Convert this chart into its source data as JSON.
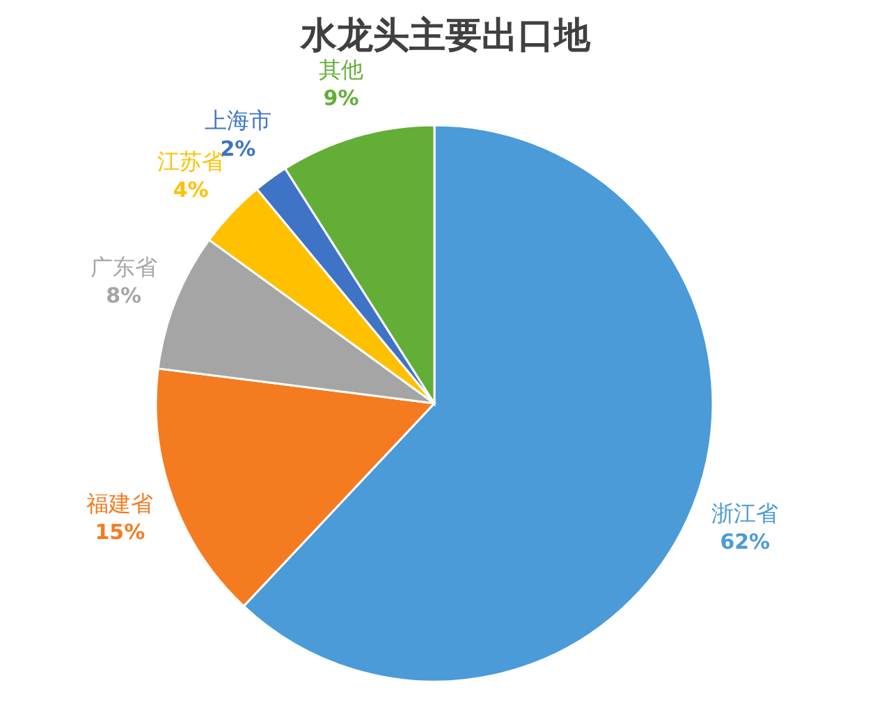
{
  "chart_data": {
    "type": "pie",
    "title": "水龙头主要出口地",
    "categories": [
      "浙江省",
      "福建省",
      "广东省",
      "江苏省",
      "上海市",
      "其他"
    ],
    "values": [
      62,
      15,
      8,
      4,
      2,
      9
    ],
    "value_labels": [
      "62%",
      "15%",
      "8%",
      "4%",
      "2%",
      "9%"
    ],
    "colors": [
      "#4a9bd8",
      "#f47b20",
      "#a5a5a5",
      "#ffc000",
      "#3f73c6",
      "#63ae36"
    ]
  }
}
